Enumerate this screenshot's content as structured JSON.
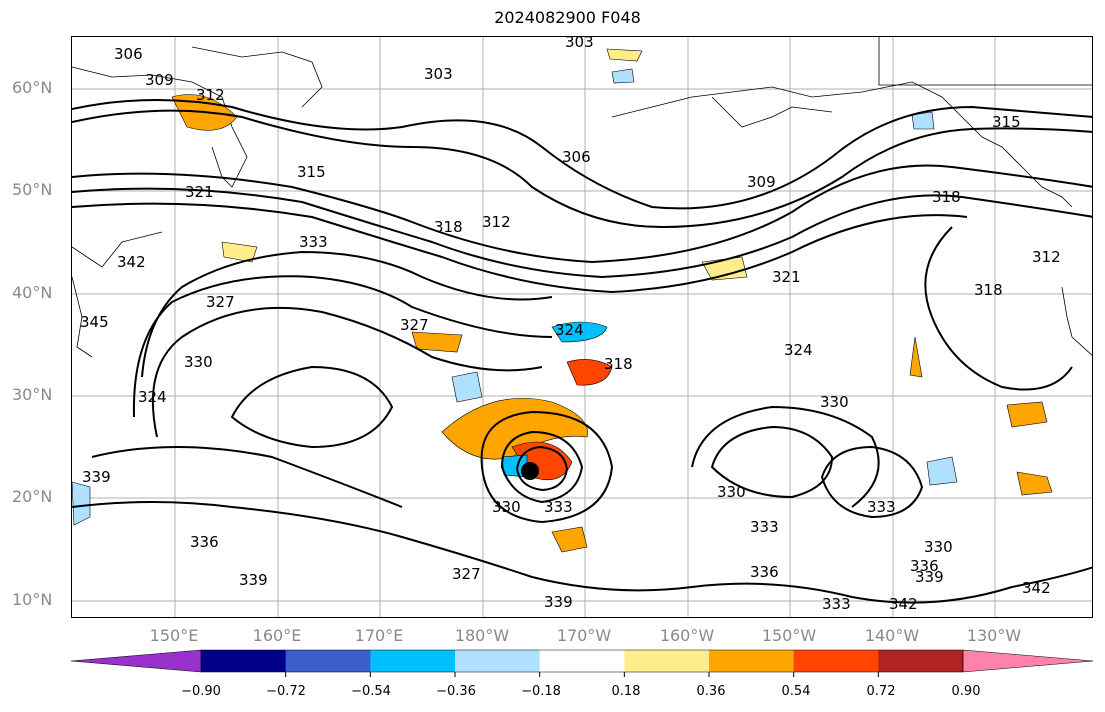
{
  "title": "2024082900 F048",
  "axes": {
    "lat_labels": [
      "60°N",
      "50°N",
      "40°N",
      "30°N",
      "20°N",
      "10°N"
    ],
    "lon_labels": [
      "150°E",
      "160°E",
      "170°E",
      "180°W",
      "170°W",
      "160°W",
      "150°W",
      "140°W",
      "130°W"
    ]
  },
  "contour_labels": [
    "306",
    "309",
    "312",
    "303",
    "303",
    "306",
    "315",
    "309",
    "315",
    "321",
    "312",
    "318",
    "318",
    "333",
    "342",
    "327",
    "312",
    "345",
    "327",
    "324",
    "330",
    "324",
    "318",
    "321",
    "318",
    "324",
    "330",
    "339",
    "330",
    "333",
    "330",
    "336",
    "333",
    "333",
    "339",
    "336",
    "339",
    "327",
    "339",
    "336",
    "330",
    "333",
    "342",
    "342"
  ],
  "colorbar": {
    "ticks": [
      "−0.90",
      "−0.72",
      "−0.54",
      "−0.36",
      "−0.18",
      "0.18",
      "0.36",
      "0.54",
      "0.72",
      "0.90"
    ],
    "colors": [
      "#9932cc",
      "#00008b",
      "#3a5fcd",
      "#00bfff",
      "#b0e0ff",
      "#ffffff",
      "#ffec8b",
      "#ffa500",
      "#ff4500",
      "#b22222",
      "#ff82ab"
    ]
  },
  "marker": "storm-center"
}
